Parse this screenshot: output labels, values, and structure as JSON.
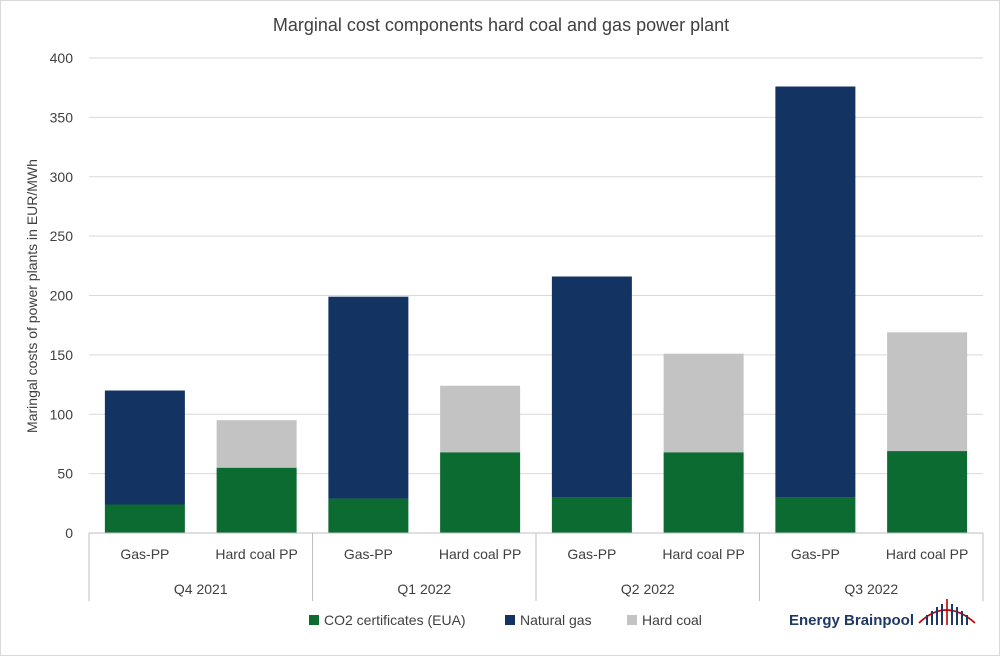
{
  "chart_data": {
    "type": "bar",
    "stacked": true,
    "title": "Marginal cost components hard coal and gas power plant",
    "ylabel": "Maringal costs of power plants in EUR/MWh",
    "xlabel": "",
    "ylim": [
      0,
      400
    ],
    "yticks": [
      0,
      50,
      100,
      150,
      200,
      250,
      300,
      350,
      400
    ],
    "grid": true,
    "legend_position": "bottom",
    "groups": [
      "Q4 2021",
      "Q1 2022",
      "Q2 2022",
      "Q3 2022"
    ],
    "categories": [
      "Gas-PP",
      "Hard coal PP",
      "Gas-PP",
      "Hard coal PP",
      "Gas-PP",
      "Hard coal PP",
      "Gas-PP",
      "Hard coal PP"
    ],
    "series": [
      {
        "name": "CO2 certificates (EUA)",
        "color": "#0b6b30",
        "values": [
          24,
          55,
          29,
          68,
          30,
          68,
          30,
          69
        ]
      },
      {
        "name": "Natural gas",
        "color": "#133363",
        "values": [
          96,
          0,
          170,
          0,
          186,
          0,
          346,
          0
        ]
      },
      {
        "name": "Hard coal",
        "color": "#c3c3c3",
        "values": [
          0,
          40,
          0,
          56,
          0,
          83,
          0,
          100
        ]
      }
    ]
  },
  "logo": {
    "text": "Energy Brainpool",
    "icon": "power-pylon-icon",
    "colors": {
      "text": "#1f3864",
      "accent": "#c00000"
    }
  }
}
